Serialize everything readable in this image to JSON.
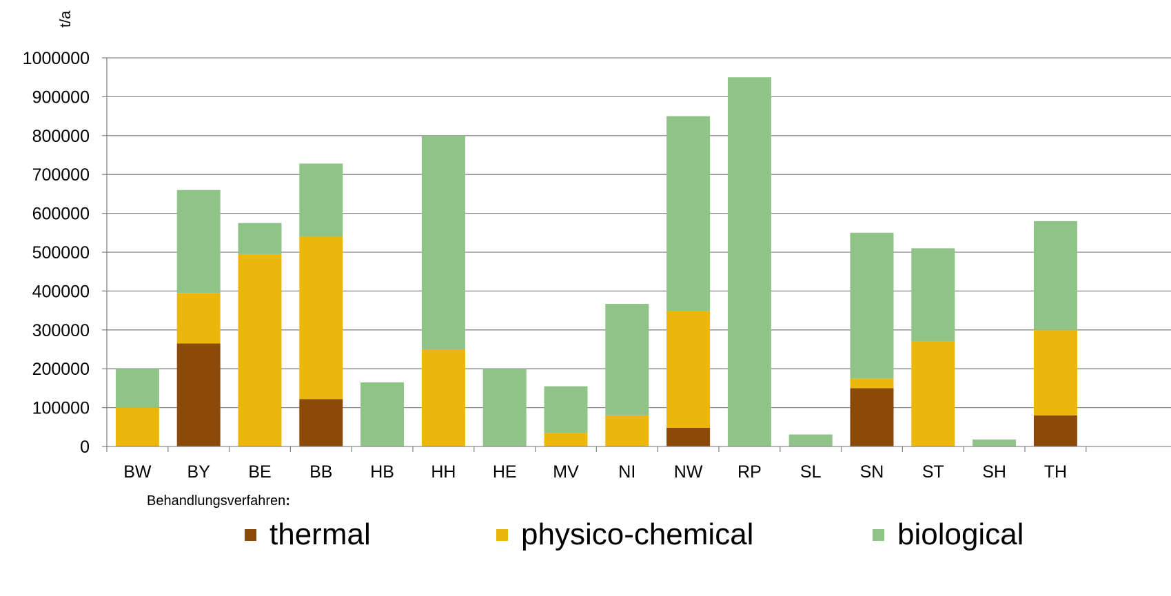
{
  "chart_data": {
    "type": "bar",
    "stacked": true,
    "ylabel": "t/a",
    "ylim": [
      0,
      1000000
    ],
    "yticks": [
      0,
      100000,
      200000,
      300000,
      400000,
      500000,
      600000,
      700000,
      800000,
      900000,
      1000000
    ],
    "grid": true,
    "categories": [
      "BW",
      "BY",
      "BE",
      "BB",
      "HB",
      "HH",
      "HE",
      "MV",
      "NI",
      "NW",
      "RP",
      "SL",
      "SN",
      "ST",
      "SH",
      "TH"
    ],
    "series": [
      {
        "name": "thermal",
        "color": "#8B4A07",
        "values": [
          0,
          265000,
          0,
          122000,
          0,
          0,
          0,
          0,
          0,
          48000,
          0,
          0,
          150000,
          0,
          0,
          80000
        ]
      },
      {
        "name": "physico-chemical",
        "color": "#EDB60B",
        "values": [
          100000,
          130000,
          495000,
          418000,
          0,
          250000,
          0,
          35000,
          80000,
          300000,
          0,
          0,
          25000,
          270000,
          0,
          220000
        ]
      },
      {
        "name": "biological",
        "color": "#8FC388",
        "values": [
          100000,
          265000,
          80000,
          188000,
          165000,
          550000,
          200000,
          120000,
          287000,
          502000,
          950000,
          31000,
          375000,
          240000,
          18000,
          280000
        ]
      }
    ],
    "legend_position": "bottom"
  },
  "legend": {
    "title": "Behandlungsverfahren",
    "title_colon": ":",
    "items": [
      {
        "label": "thermal",
        "color": "#8B4A07"
      },
      {
        "label": "physico-chemical",
        "color": "#EDB60B"
      },
      {
        "label": "biological",
        "color": "#8FC388"
      }
    ]
  }
}
